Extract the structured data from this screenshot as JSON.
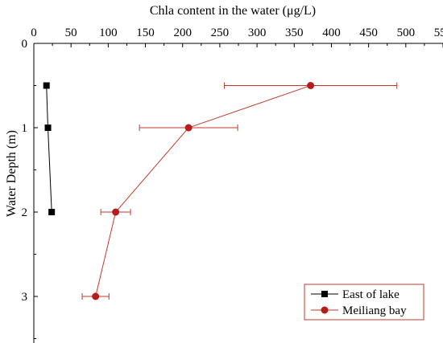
{
  "chart_data": {
    "type": "line",
    "title": "Chla content in the water (μg/L)",
    "xlabel": "Chla content in the water (μg/L)",
    "ylabel": "Water Depth (m)",
    "x_axis_position": "top",
    "y_axis_inverted": true,
    "xlim": [
      0,
      550
    ],
    "ylim": [
      0,
      3.5
    ],
    "x_ticks": [
      0,
      50,
      100,
      150,
      200,
      250,
      300,
      350,
      400,
      450,
      500,
      550
    ],
    "y_ticks": [
      0,
      1,
      2,
      3
    ],
    "grid": false,
    "legend_position": "bottom-right",
    "series": [
      {
        "name": "East of lake",
        "color": "#000000",
        "marker": "square",
        "points": [
          {
            "x": 17,
            "y": 0.5,
            "xerr": 2
          },
          {
            "x": 19,
            "y": 1.0,
            "xerr": 1.5
          },
          {
            "x": 24,
            "y": 2.0,
            "xerr": 3
          }
        ]
      },
      {
        "name": "Meiliang bay",
        "color": "#c0392b",
        "marker_color": "#b71c1c",
        "marker": "circle",
        "points": [
          {
            "x": 372,
            "y": 0.5,
            "xerr": 116
          },
          {
            "x": 208,
            "y": 1.0,
            "xerr": 66
          },
          {
            "x": 110,
            "y": 2.0,
            "xerr": 20
          },
          {
            "x": 83,
            "y": 3.0,
            "xerr": 18
          }
        ]
      }
    ]
  }
}
